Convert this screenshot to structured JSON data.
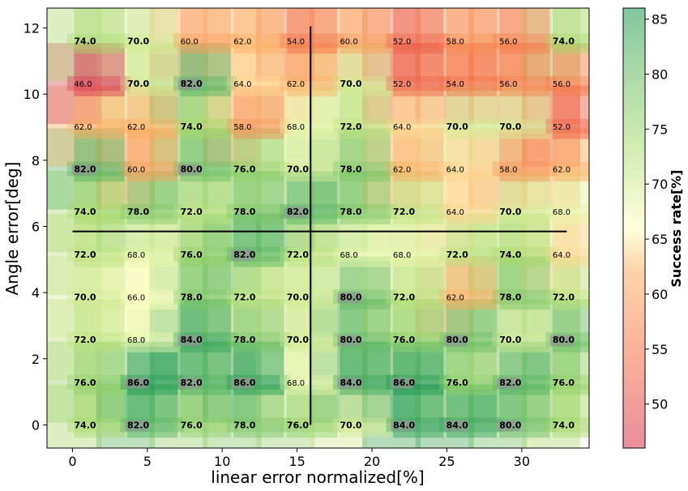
{
  "chart_data": {
    "type": "heatmap",
    "xlabel": "linear error normalized[%]",
    "ylabel": "Angle error[deg]",
    "colorbar_label": "Success rate[%]",
    "xlim": [
      -1.7,
      34.5
    ],
    "ylim": [
      -0.7,
      12.6
    ],
    "x_ticks": [
      0,
      5,
      10,
      15,
      20,
      25,
      30
    ],
    "y_ticks": [
      0,
      2,
      4,
      6,
      8,
      10,
      12
    ],
    "colorbar_range": [
      46,
      86
    ],
    "colorbar_ticks": [
      50,
      55,
      60,
      65,
      70,
      75,
      80,
      85
    ],
    "colormap": "RdYlGn",
    "x": [
      0,
      3.55,
      7.1,
      10.65,
      14.2,
      17.75,
      21.3,
      24.85,
      28.4,
      31.95
    ],
    "y": [
      0,
      1.29,
      2.58,
      3.87,
      5.16,
      6.45,
      7.74,
      9.03,
      10.32,
      11.61
    ],
    "values": [
      [
        74,
        82,
        76,
        78,
        76,
        70,
        84,
        84,
        80,
        74
      ],
      [
        76,
        86,
        82,
        86,
        68,
        84,
        86,
        76,
        82,
        76
      ],
      [
        72,
        68,
        84,
        78,
        70,
        80,
        76,
        80,
        70,
        80
      ],
      [
        70,
        66,
        78,
        72,
        70,
        80,
        72,
        62,
        78,
        72
      ],
      [
        72,
        68,
        76,
        82,
        72,
        68,
        68,
        72,
        74,
        64
      ],
      [
        74,
        78,
        72,
        78,
        82,
        78,
        72,
        64,
        70,
        68
      ],
      [
        82,
        60,
        80,
        76,
        70,
        78,
        62,
        64,
        58,
        62
      ],
      [
        62,
        62,
        74,
        58,
        68,
        72,
        64,
        70,
        70,
        52
      ],
      [
        46,
        70,
        82,
        64,
        62,
        70,
        52,
        54,
        56,
        56
      ],
      [
        74,
        70,
        60,
        62,
        54,
        60,
        52,
        58,
        56,
        74
      ]
    ],
    "reference_lines": {
      "x": 15.9,
      "y": 5.85
    }
  }
}
